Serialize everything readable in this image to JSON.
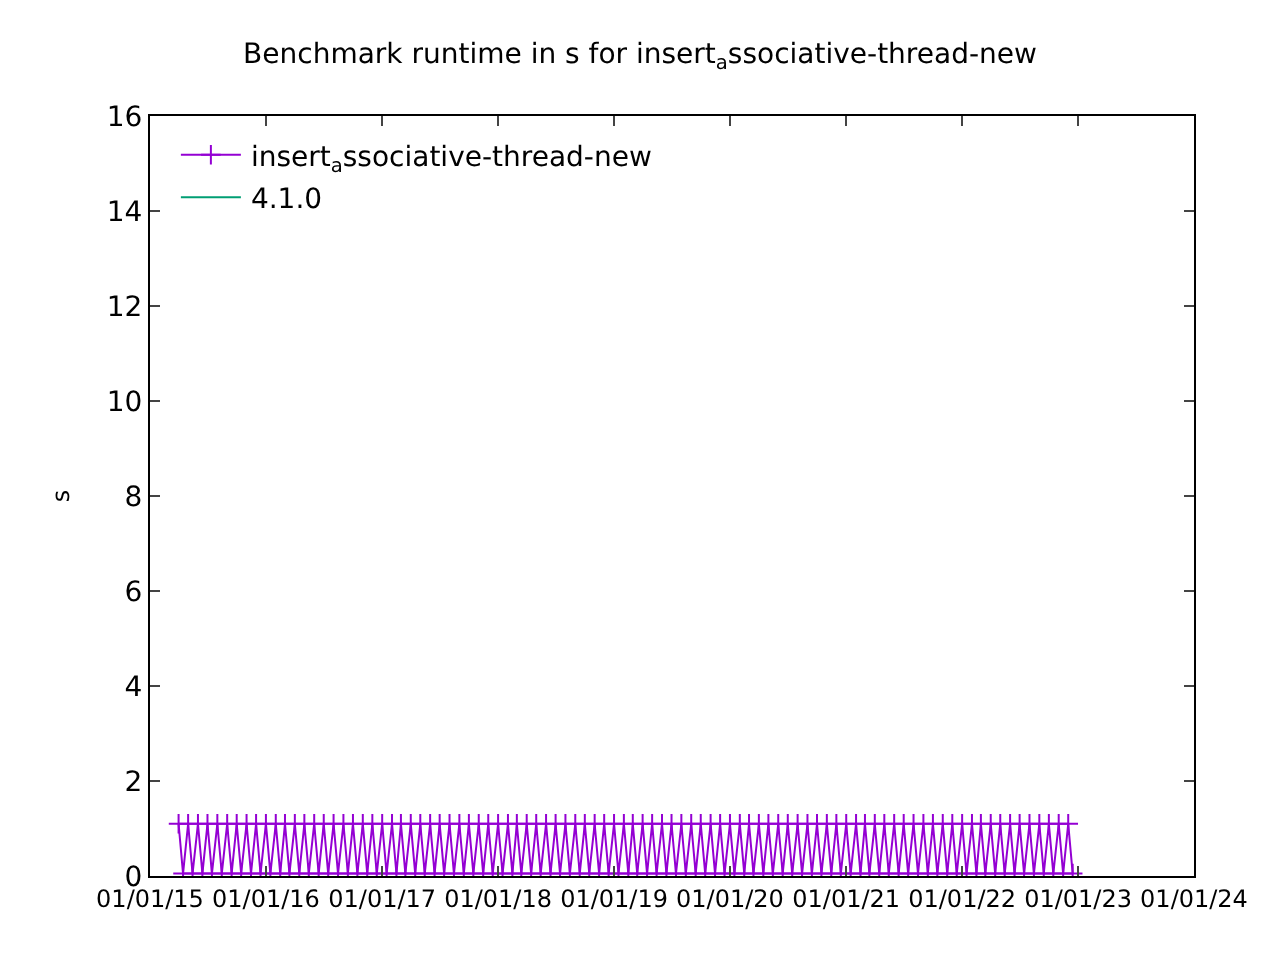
{
  "chart_data": {
    "type": "line",
    "title": "Benchmark runtime in s for insert$_{a}$ssociative-thread-new",
    "ylabel": "s",
    "xlim": [
      "2015-01-01",
      "2024-01-01"
    ],
    "xticks": [
      {
        "value": "2015-01-01",
        "label": "01/01/15"
      },
      {
        "value": "2016-01-01",
        "label": "01/01/16"
      },
      {
        "value": "2017-01-01",
        "label": "01/01/17"
      },
      {
        "value": "2018-01-01",
        "label": "01/01/18"
      },
      {
        "value": "2019-01-01",
        "label": "01/01/19"
      },
      {
        "value": "2020-01-01",
        "label": "01/01/20"
      },
      {
        "value": "2021-01-01",
        "label": "01/01/21"
      },
      {
        "value": "2022-01-01",
        "label": "01/01/22"
      },
      {
        "value": "2023-01-01",
        "label": "01/01/23"
      },
      {
        "value": "2024-01-01",
        "label": "01/01/24"
      }
    ],
    "ylim": [
      0,
      16
    ],
    "yticks": [
      0,
      2,
      4,
      6,
      8,
      10,
      12,
      14,
      16
    ],
    "grid": false,
    "legend": "top",
    "series": [
      {
        "name": "insert$_{a}$ssociative-thread-new",
        "color": "#9400d3",
        "marker": "cross",
        "x": [
          "2015-04-01",
          "2015-04-15",
          "2015-05-01",
          "2015-05-15",
          "2015-06-01",
          "2015-06-15",
          "2015-07-01",
          "2015-07-15",
          "2015-08-01",
          "2015-08-15",
          "2015-09-01",
          "2015-09-15",
          "2015-10-01",
          "2015-10-15",
          "2015-11-01",
          "2015-11-15",
          "2015-12-01",
          "2015-12-15",
          "2016-01-01",
          "2016-01-15",
          "2016-02-01",
          "2016-02-15",
          "2016-03-01",
          "2016-03-15",
          "2016-04-01",
          "2016-04-15",
          "2016-05-01",
          "2016-05-15",
          "2016-06-01",
          "2016-06-15",
          "2016-07-01",
          "2016-07-15",
          "2016-08-01",
          "2016-08-15",
          "2016-09-01",
          "2016-09-15",
          "2016-10-01",
          "2016-10-15",
          "2016-11-01",
          "2016-11-15",
          "2016-12-01",
          "2016-12-15",
          "2017-01-01",
          "2017-01-15",
          "2017-02-01",
          "2017-02-15",
          "2017-03-01",
          "2017-03-15",
          "2017-04-01",
          "2017-04-15",
          "2017-05-01",
          "2017-05-15",
          "2017-06-01",
          "2017-06-15",
          "2017-07-01",
          "2017-07-15",
          "2017-08-01",
          "2017-08-15",
          "2017-09-01",
          "2017-09-15",
          "2017-10-01",
          "2017-10-15",
          "2017-11-01",
          "2017-11-15",
          "2017-12-01",
          "2017-12-15",
          "2018-01-01",
          "2018-01-15",
          "2018-02-01",
          "2018-02-15",
          "2018-03-01",
          "2018-03-15",
          "2018-04-01",
          "2018-04-15",
          "2018-05-01",
          "2018-05-15",
          "2018-06-01",
          "2018-06-15",
          "2018-07-01",
          "2018-07-15",
          "2018-08-01",
          "2018-08-15",
          "2018-09-01",
          "2018-09-15",
          "2018-10-01",
          "2018-10-15",
          "2018-11-01",
          "2018-11-15",
          "2018-12-01",
          "2018-12-15",
          "2019-01-01",
          "2019-01-15",
          "2019-02-01",
          "2019-02-15",
          "2019-03-01",
          "2019-03-15",
          "2019-04-01",
          "2019-04-15",
          "2019-05-01",
          "2019-05-15",
          "2019-06-01",
          "2019-06-15",
          "2019-07-01",
          "2019-07-15",
          "2019-08-01",
          "2019-08-15",
          "2019-09-01",
          "2019-09-15",
          "2019-10-01",
          "2019-10-15",
          "2019-11-01",
          "2019-11-15",
          "2019-12-01",
          "2019-12-15",
          "2020-01-01",
          "2020-01-15",
          "2020-02-01",
          "2020-02-15",
          "2020-03-01",
          "2020-03-15",
          "2020-04-01",
          "2020-04-15",
          "2020-05-01",
          "2020-05-15",
          "2020-06-01",
          "2020-06-15",
          "2020-07-01",
          "2020-07-15",
          "2020-08-01",
          "2020-08-15",
          "2020-09-01",
          "2020-09-15",
          "2020-10-01",
          "2020-10-15",
          "2020-11-01",
          "2020-11-15",
          "2020-12-01",
          "2020-12-15",
          "2021-01-01",
          "2021-01-15",
          "2021-02-01",
          "2021-02-15",
          "2021-03-01",
          "2021-03-15",
          "2021-04-01",
          "2021-04-15",
          "2021-05-01",
          "2021-05-15",
          "2021-06-01",
          "2021-06-15",
          "2021-07-01",
          "2021-07-15",
          "2021-08-01",
          "2021-08-15",
          "2021-09-01",
          "2021-09-15",
          "2021-10-01",
          "2021-10-15",
          "2021-11-01",
          "2021-11-15",
          "2021-12-01",
          "2021-12-15",
          "2022-01-01",
          "2022-01-15",
          "2022-02-01",
          "2022-02-15",
          "2022-03-01",
          "2022-03-15",
          "2022-04-01",
          "2022-04-15",
          "2022-05-01",
          "2022-05-15",
          "2022-06-01",
          "2022-06-15",
          "2022-07-01",
          "2022-07-15",
          "2022-08-01",
          "2022-08-15",
          "2022-09-01",
          "2022-09-15",
          "2022-10-01",
          "2022-10-15",
          "2022-11-01",
          "2022-11-15",
          "2022-12-01",
          "2022-12-15"
        ],
        "values": [
          1.1,
          0.05,
          1.1,
          0.05,
          1.1,
          0.05,
          1.1,
          0.05,
          1.1,
          0.05,
          1.1,
          0.05,
          1.1,
          0.05,
          1.1,
          0.05,
          1.1,
          0.05,
          1.1,
          0.05,
          1.1,
          0.05,
          1.1,
          0.05,
          1.1,
          0.05,
          1.1,
          0.05,
          1.1,
          0.05,
          1.1,
          0.05,
          1.1,
          0.05,
          1.1,
          0.05,
          1.1,
          0.05,
          1.1,
          0.05,
          1.1,
          0.05,
          1.1,
          0.05,
          1.1,
          0.05,
          1.1,
          0.05,
          1.1,
          0.05,
          1.1,
          0.05,
          1.1,
          0.05,
          1.1,
          0.05,
          1.1,
          0.05,
          1.1,
          0.05,
          1.1,
          0.05,
          1.1,
          0.05,
          1.1,
          0.05,
          1.1,
          0.05,
          1.1,
          0.05,
          1.1,
          0.05,
          1.1,
          0.05,
          1.1,
          0.05,
          1.1,
          0.05,
          1.1,
          0.05,
          1.1,
          0.05,
          1.1,
          0.05,
          1.1,
          0.05,
          1.1,
          0.05,
          1.1,
          0.05,
          1.1,
          0.05,
          1.1,
          0.05,
          1.1,
          0.05,
          1.1,
          0.05,
          1.1,
          0.05,
          1.1,
          0.05,
          1.1,
          0.05,
          1.1,
          0.05,
          1.1,
          0.05,
          1.1,
          0.05,
          1.1,
          0.05,
          1.1,
          0.05,
          1.1,
          0.05,
          1.1,
          0.05,
          1.1,
          0.05,
          1.1,
          0.05,
          1.1,
          0.05,
          1.1,
          0.05,
          1.1,
          0.05,
          1.1,
          0.05,
          1.1,
          0.05,
          1.1,
          0.05,
          1.1,
          0.05,
          1.1,
          0.05,
          1.1,
          0.05,
          1.1,
          0.05,
          1.1,
          0.05,
          1.1,
          0.05,
          1.1,
          0.05,
          1.1,
          0.05,
          1.1,
          0.05,
          1.1,
          0.05,
          1.1,
          0.05,
          1.1,
          0.05,
          1.1,
          0.05,
          1.1,
          0.05,
          1.1,
          0.05,
          1.1,
          0.05,
          1.1,
          0.05,
          1.1,
          0.05,
          1.1,
          0.05,
          1.1,
          0.05,
          1.1,
          0.05,
          1.1,
          0.05,
          1.1,
          0.05,
          1.1,
          0.05,
          1.1,
          0.05,
          1.1,
          0.05
        ]
      },
      {
        "name": "4.1.0",
        "color": "#009e73",
        "marker": "none",
        "line_style": "solid"
      }
    ]
  }
}
